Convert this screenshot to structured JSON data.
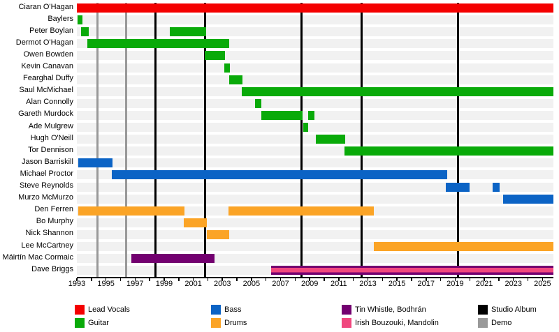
{
  "colors": {
    "lead_vocals": "#f40000",
    "guitar": "#09aa09",
    "bass": "#0b63c5",
    "drums": "#fba426",
    "tin_whistle": "#730070",
    "bouzouki": "#f0477e",
    "album_line": "#000000",
    "demo_line": "#999999",
    "row_band": "#f1f1f1",
    "text": "#000000"
  },
  "chart_data": {
    "type": "bar",
    "subtype": "horizontal-member-timeline",
    "x_axis": {
      "min_year": 1993,
      "max_year": 2025.75,
      "minor_tick_step": 1,
      "label_step": 2,
      "first_label": 1993,
      "last_label": 2025,
      "tick_labels": [
        "1993",
        "1995",
        "1997",
        "1999",
        "2001",
        "2003",
        "2005",
        "2007",
        "2009",
        "2011",
        "2013",
        "2015",
        "2017",
        "2019",
        "2021",
        "2023",
        "2025"
      ]
    },
    "events": {
      "albums": [
        1998.4,
        2001.8,
        2008.45,
        2012.55,
        2019.2
      ],
      "demos": [
        1994.4,
        1996.4
      ]
    },
    "members": [
      {
        "name": "Ciaran O'Hagan",
        "periods": [
          {
            "roles": [
              "lead_vocals"
            ],
            "start": 1993.0,
            "end": 2025.75
          }
        ]
      },
      {
        "name": "Baylers",
        "periods": [
          {
            "roles": [
              "guitar"
            ],
            "start": 1993.05,
            "end": 1993.4
          }
        ]
      },
      {
        "name": "Peter Boylan",
        "periods": [
          {
            "roles": [
              "guitar"
            ],
            "start": 1993.3,
            "end": 1993.8
          },
          {
            "roles": [
              "guitar"
            ],
            "start": 1999.4,
            "end": 2001.9
          }
        ]
      },
      {
        "name": "Dermot O'Hagan",
        "periods": [
          {
            "roles": [
              "guitar"
            ],
            "start": 1993.7,
            "end": 2003.45
          }
        ]
      },
      {
        "name": "Owen Bowden",
        "periods": [
          {
            "roles": [
              "guitar"
            ],
            "start": 2001.8,
            "end": 2003.2
          }
        ]
      },
      {
        "name": "Kevin Canavan",
        "periods": [
          {
            "roles": [
              "guitar"
            ],
            "start": 2003.15,
            "end": 2003.5
          }
        ]
      },
      {
        "name": "Fearghal Duffy",
        "periods": [
          {
            "roles": [
              "guitar"
            ],
            "start": 2003.45,
            "end": 2004.4
          }
        ]
      },
      {
        "name": "Saul McMichael",
        "periods": [
          {
            "roles": [
              "guitar"
            ],
            "start": 2004.35,
            "end": 2025.75
          }
        ]
      },
      {
        "name": "Alan Connolly",
        "periods": [
          {
            "roles": [
              "guitar"
            ],
            "start": 2005.25,
            "end": 2005.7
          }
        ]
      },
      {
        "name": "Gareth Murdock",
        "periods": [
          {
            "roles": [
              "guitar"
            ],
            "start": 2005.7,
            "end": 2008.5
          },
          {
            "roles": [
              "guitar"
            ],
            "start": 2008.9,
            "end": 2009.35
          }
        ]
      },
      {
        "name": "Ade Mulgrew",
        "periods": [
          {
            "roles": [
              "guitar"
            ],
            "start": 2008.55,
            "end": 2008.9
          }
        ]
      },
      {
        "name": "Hugh O'Neill",
        "periods": [
          {
            "roles": [
              "guitar"
            ],
            "start": 2009.4,
            "end": 2011.45
          }
        ]
      },
      {
        "name": "Tor Dennison",
        "periods": [
          {
            "roles": [
              "guitar"
            ],
            "start": 2011.4,
            "end": 2025.75
          }
        ]
      },
      {
        "name": "Jason Barriskill",
        "periods": [
          {
            "roles": [
              "bass"
            ],
            "start": 1993.1,
            "end": 1995.45
          }
        ]
      },
      {
        "name": "Michael Proctor",
        "periods": [
          {
            "roles": [
              "bass"
            ],
            "start": 1995.4,
            "end": 2018.45
          }
        ]
      },
      {
        "name": "Steve Reynolds",
        "periods": [
          {
            "roles": [
              "bass"
            ],
            "start": 2018.35,
            "end": 2020.0
          },
          {
            "roles": [
              "bass"
            ],
            "start": 2021.55,
            "end": 2022.05
          }
        ]
      },
      {
        "name": "Murzo McMurzo",
        "periods": [
          {
            "roles": [
              "bass"
            ],
            "start": 2022.3,
            "end": 2025.75
          }
        ]
      },
      {
        "name": "Den Ferren",
        "periods": [
          {
            "roles": [
              "drums"
            ],
            "start": 1993.1,
            "end": 2000.4
          },
          {
            "roles": [
              "drums"
            ],
            "start": 2003.4,
            "end": 2013.4
          }
        ]
      },
      {
        "name": "Bo Murphy",
        "periods": [
          {
            "roles": [
              "drums"
            ],
            "start": 2000.35,
            "end": 2001.93
          }
        ]
      },
      {
        "name": "Nick Shannon",
        "periods": [
          {
            "roles": [
              "drums"
            ],
            "start": 2001.93,
            "end": 2003.47
          }
        ]
      },
      {
        "name": "Lee McCartney",
        "periods": [
          {
            "roles": [
              "drums"
            ],
            "start": 2013.4,
            "end": 2025.75
          }
        ]
      },
      {
        "name": "Máirtín Mac Cormaic",
        "periods": [
          {
            "roles": [
              "tin_whistle"
            ],
            "start": 1996.75,
            "end": 2002.45
          }
        ]
      },
      {
        "name": "Dave Briggs",
        "periods": [
          {
            "roles": [
              "tin_whistle",
              "bouzouki"
            ],
            "start": 2006.35,
            "end": 2025.75
          }
        ]
      }
    ]
  },
  "legend": {
    "items": [
      {
        "label": "Lead Vocals",
        "color_key": "lead_vocals"
      },
      {
        "label": "Guitar",
        "color_key": "guitar"
      },
      {
        "label": "Bass",
        "color_key": "bass"
      },
      {
        "label": "Drums",
        "color_key": "drums"
      },
      {
        "label": "Tin Whistle, Bodhrán",
        "color_key": "tin_whistle"
      },
      {
        "label": "Irish Bouzouki, Mandolin",
        "color_key": "bouzouki"
      },
      {
        "label": "Studio Album",
        "color_key": "album_line"
      },
      {
        "label": "Demo",
        "color_key": "demo_line"
      }
    ]
  }
}
